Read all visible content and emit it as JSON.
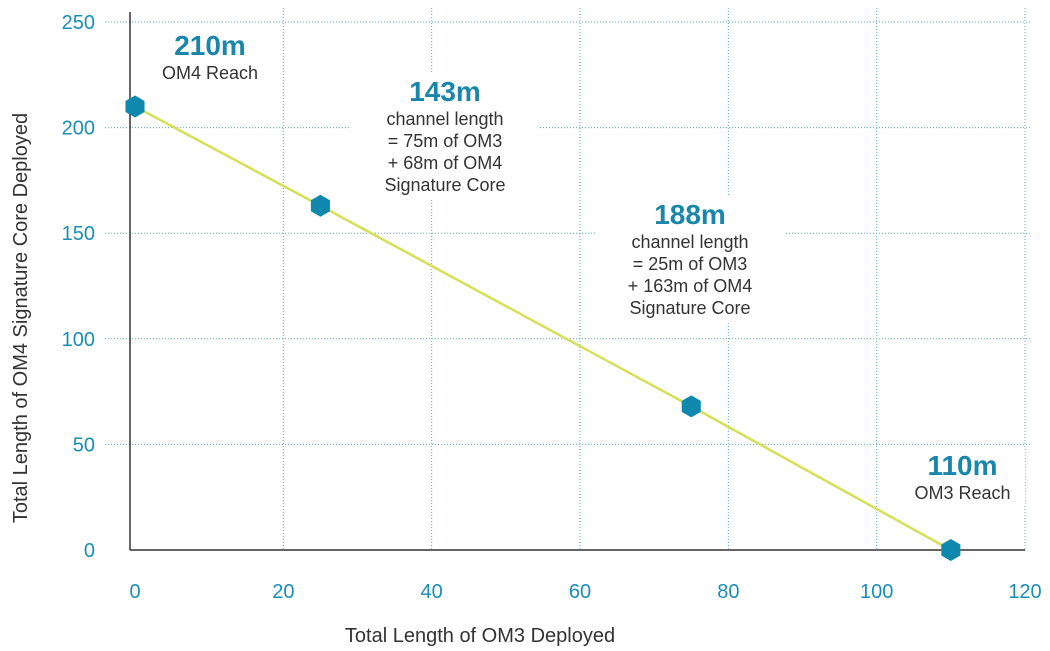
{
  "colors": {
    "line": "#d4e157",
    "marker": "#0e88ad",
    "tick": "#1a8fb3",
    "grid": "#5aa7c7",
    "axis": "#333333",
    "highlight": "#1a86aa"
  },
  "annotations": {
    "a1": {
      "value": "210m",
      "lines": [
        "OM4 Reach"
      ]
    },
    "a2": {
      "value": "143m",
      "lines": [
        "channel length",
        "= 75m of OM3",
        "+ 68m of OM4",
        "Signature Core"
      ]
    },
    "a3": {
      "value": "188m",
      "lines": [
        "channel length",
        "= 25m of OM3",
        "+ 163m of OM4",
        "Signature Core"
      ]
    },
    "a4": {
      "value": "110m",
      "lines": [
        "OM3 Reach"
      ]
    }
  },
  "chart_data": {
    "type": "line",
    "title": "",
    "xlabel": "Total Length of OM3 Deployed",
    "ylabel": "Total Length of OM4 Signature Core Deployed",
    "xlim": [
      0,
      120
    ],
    "ylim": [
      0,
      250
    ],
    "xticks": [
      0,
      20,
      40,
      60,
      80,
      100,
      120
    ],
    "yticks": [
      0,
      50,
      100,
      150,
      200,
      250
    ],
    "grid": true,
    "series": [
      {
        "x": [
          0,
          25,
          75,
          110
        ],
        "y": [
          210,
          163,
          68,
          0
        ]
      }
    ]
  }
}
